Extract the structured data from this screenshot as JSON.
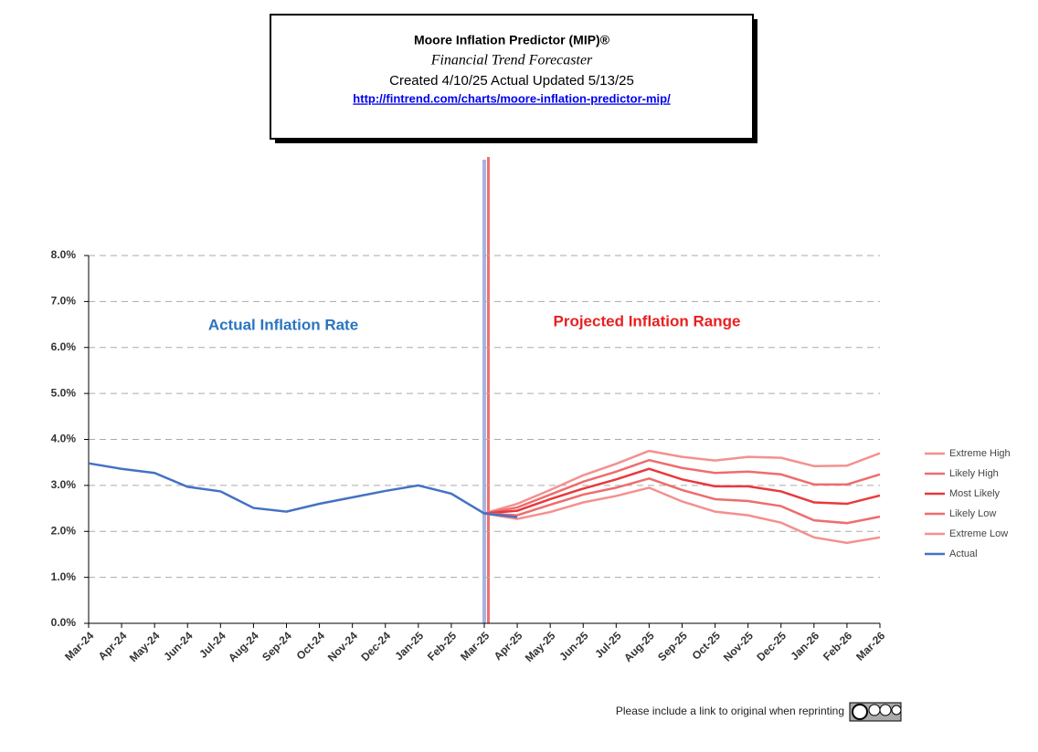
{
  "chart_data": {
    "type": "line",
    "title": "Moore Inflation Predictor (MIP)®",
    "subtitle": "Financial Trend Forecaster",
    "created": "Created 4/10/25 Actual Updated 5/13/25",
    "link": "http://fintrend.com/charts/moore-inflation-predictor-mip/",
    "annotations": [
      "Actual Inflation Rate",
      "Projected Inflation Range"
    ],
    "footer": "Please include a link to original when reprinting",
    "categories": [
      "Mar-24",
      "Apr-24",
      "May-24",
      "Jun-24",
      "Jul-24",
      "Aug-24",
      "Sep-24",
      "Oct-24",
      "Nov-24",
      "Dec-24",
      "Jan-25",
      "Feb-25",
      "Mar-25",
      "Apr-25",
      "May-25",
      "Jun-25",
      "Jul-25",
      "Aug-25",
      "Sep-25",
      "Oct-25",
      "Nov-25",
      "Dec-25",
      "Jan-26",
      "Feb-26",
      "Mar-26"
    ],
    "series": [
      {
        "name": "Extreme High",
        "color": "#f4908f",
        "values": [
          null,
          null,
          null,
          null,
          null,
          null,
          null,
          null,
          null,
          null,
          null,
          null,
          2.39,
          2.6,
          2.9,
          3.22,
          3.47,
          3.75,
          3.62,
          3.54,
          3.62,
          3.6,
          3.42,
          3.43,
          3.7
        ]
      },
      {
        "name": "Likely High",
        "color": "#ee6d6d",
        "values": [
          null,
          null,
          null,
          null,
          null,
          null,
          null,
          null,
          null,
          null,
          null,
          null,
          2.39,
          2.52,
          2.8,
          3.08,
          3.3,
          3.55,
          3.38,
          3.27,
          3.3,
          3.24,
          3.02,
          3.02,
          3.24
        ]
      },
      {
        "name": "Most Likely",
        "color": "#e8393b",
        "values": [
          null,
          null,
          null,
          null,
          null,
          null,
          null,
          null,
          null,
          null,
          null,
          null,
          2.39,
          2.45,
          2.7,
          2.93,
          3.13,
          3.36,
          3.13,
          2.98,
          2.98,
          2.87,
          2.63,
          2.6,
          2.78
        ]
      },
      {
        "name": "Likely Low",
        "color": "#ee6d6d",
        "values": [
          null,
          null,
          null,
          null,
          null,
          null,
          null,
          null,
          null,
          null,
          null,
          null,
          2.39,
          2.35,
          2.58,
          2.8,
          2.95,
          3.15,
          2.9,
          2.7,
          2.66,
          2.55,
          2.24,
          2.18,
          2.32
        ]
      },
      {
        "name": "Extreme Low",
        "color": "#f4908f",
        "values": [
          null,
          null,
          null,
          null,
          null,
          null,
          null,
          null,
          null,
          null,
          null,
          null,
          2.39,
          2.27,
          2.42,
          2.63,
          2.77,
          2.95,
          2.65,
          2.43,
          2.35,
          2.19,
          1.87,
          1.75,
          1.87
        ]
      },
      {
        "name": "Actual",
        "color": "#4472c4",
        "values": [
          3.48,
          3.36,
          3.27,
          2.97,
          2.87,
          2.51,
          2.43,
          2.6,
          2.74,
          2.88,
          3.0,
          2.82,
          2.39,
          2.31,
          null,
          null,
          null,
          null,
          null,
          null,
          null,
          null,
          null,
          null,
          null
        ]
      }
    ],
    "ylim": [
      0,
      8
    ],
    "yticks": [
      {
        "value": 0,
        "label": "0.0%"
      },
      {
        "value": 1,
        "label": "1.0%"
      },
      {
        "value": 2,
        "label": "2.0%"
      },
      {
        "value": 3,
        "label": "3.0%"
      },
      {
        "value": 4,
        "label": "4.0%"
      },
      {
        "value": 5,
        "label": "5.0%"
      },
      {
        "value": 6,
        "label": "6.0%"
      },
      {
        "value": 7,
        "label": "7.0%"
      },
      {
        "value": 8,
        "label": "8.0%"
      }
    ],
    "grid": true
  }
}
